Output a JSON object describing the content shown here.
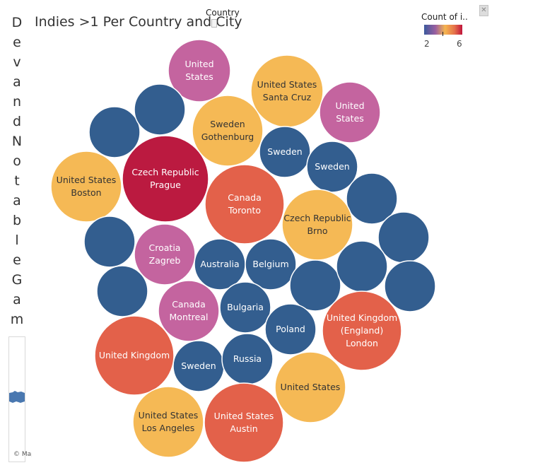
{
  "page": {
    "side_title_letters": [
      "D",
      "e",
      "v",
      "a",
      "n",
      "d",
      "N",
      "o",
      "t",
      "a",
      "b",
      "l",
      "e",
      "G",
      "a",
      "m"
    ],
    "map_credit": "© Mapbox",
    "close_glyph": "✕"
  },
  "legend": {
    "title": "Count of i..",
    "min_label": "2",
    "max_label": "6",
    "colors": [
      "#3b5a9d",
      "#9b5fa0",
      "#f5b54f",
      "#e4704a",
      "#c0143c"
    ]
  },
  "color_scale": {
    "2": "#335e8f",
    "3": "#c4649f",
    "4": "#f5b955",
    "5": "#e3614a",
    "6": "#bb1a40"
  },
  "chart_data": {
    "type": "bubble",
    "title": "Indies >1 Per Country and City",
    "dimension_label": "Country",
    "measure_label": "Count of i..",
    "bubbles": [
      {
        "country": "United States",
        "city": "",
        "value": 3
      },
      {
        "country": "United States",
        "city": "Santa Cruz",
        "value": 4
      },
      {
        "country": "United States",
        "city": "",
        "value": 3
      },
      {
        "country": "",
        "city": "",
        "value": 2
      },
      {
        "country": "",
        "city": "",
        "value": 2
      },
      {
        "country": "Sweden",
        "city": "Gothenburg",
        "value": 4
      },
      {
        "country": "Sweden",
        "city": "",
        "value": 2
      },
      {
        "country": "Sweden",
        "city": "",
        "value": 2
      },
      {
        "country": "United States",
        "city": "Boston",
        "value": 4
      },
      {
        "country": "Czech Republic",
        "city": "Prague",
        "value": 6
      },
      {
        "country": "Canada",
        "city": "Toronto",
        "value": 5
      },
      {
        "country": "",
        "city": "",
        "value": 2
      },
      {
        "country": "Czech Republic",
        "city": "Brno",
        "value": 4
      },
      {
        "country": "",
        "city": "",
        "value": 2
      },
      {
        "country": "",
        "city": "",
        "value": 2
      },
      {
        "country": "Croatia",
        "city": "Zagreb",
        "value": 3
      },
      {
        "country": "Australia",
        "city": "",
        "value": 2
      },
      {
        "country": "Belgium",
        "city": "",
        "value": 2
      },
      {
        "country": "",
        "city": "",
        "value": 2
      },
      {
        "country": "",
        "city": "",
        "value": 2
      },
      {
        "country": "",
        "city": "",
        "value": 2
      },
      {
        "country": "",
        "city": "",
        "value": 2
      },
      {
        "country": "Canada",
        "city": "Montreal",
        "value": 3
      },
      {
        "country": "Bulgaria",
        "city": "",
        "value": 2
      },
      {
        "country": "Poland",
        "city": "",
        "value": 2
      },
      {
        "country": "United Kingdom (England)",
        "city": "London",
        "value": 5
      },
      {
        "country": "United Kingdom",
        "city": "",
        "value": 5
      },
      {
        "country": "Sweden",
        "city": "",
        "value": 2
      },
      {
        "country": "Russia",
        "city": "",
        "value": 2
      },
      {
        "country": "United States",
        "city": "",
        "value": 4
      },
      {
        "country": "United States",
        "city": "Los Angeles",
        "value": 4
      },
      {
        "country": "United States",
        "city": "Austin",
        "value": 5
      }
    ]
  }
}
